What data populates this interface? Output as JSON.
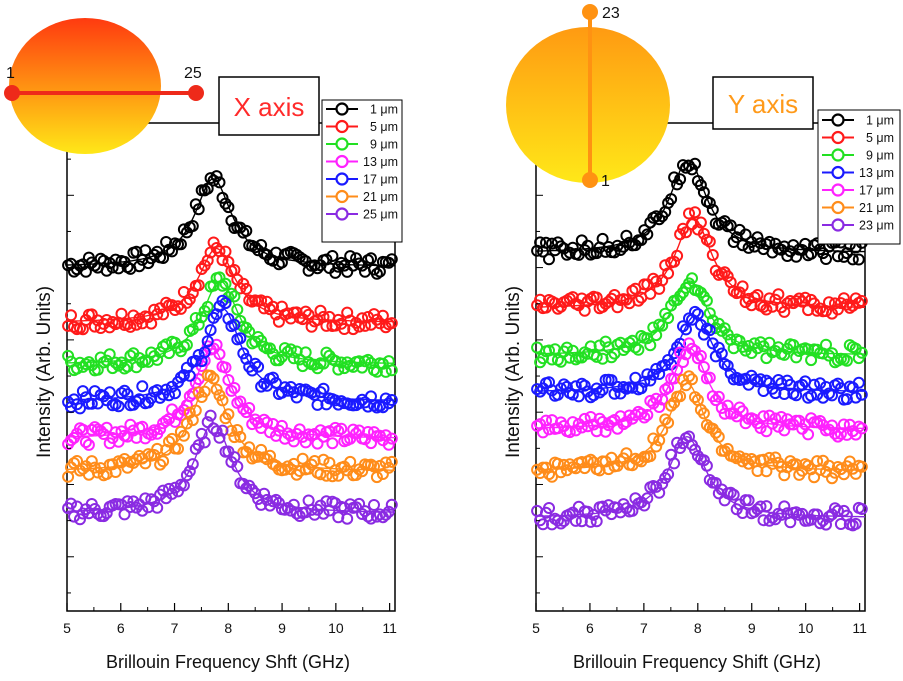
{
  "chart_data": [
    {
      "type": "scatter",
      "title": "X axis",
      "title_color": "#ff2a2a",
      "xlabel": "Brillouin Frequency Shft (GHz)",
      "ylabel": "Intensity (Arb. Units)",
      "xlim": [
        5,
        11.1
      ],
      "x_ticks": [
        "5",
        "6",
        "7",
        "8",
        "9",
        "10",
        "11"
      ],
      "y_ticks_shown": false,
      "legend_placement": "top-right",
      "inset": {
        "orientation": "horizontal",
        "start_label": "1",
        "end_label": "25"
      },
      "series": [
        {
          "name": "1 μm",
          "color": "#000000",
          "peak_x": 7.72,
          "baseline": 7.4,
          "amplitude": 1.9
        },
        {
          "name": "5 μm",
          "color": "#ff1a1a",
          "peak_x": 7.78,
          "baseline": 6.2,
          "amplitude": 1.6
        },
        {
          "name": "9 μm",
          "color": "#22e022",
          "peak_x": 7.85,
          "baseline": 5.3,
          "amplitude": 1.8
        },
        {
          "name": "13 μm",
          "color": "#ff22ff",
          "peak_x": 7.7,
          "baseline": 3.7,
          "amplitude": 1.95
        },
        {
          "name": "17 μm",
          "color": "#1a1aff",
          "peak_x": 7.9,
          "baseline": 4.5,
          "amplitude": 2.0
        },
        {
          "name": "21 μm",
          "color": "#ff8c1a",
          "peak_x": 7.65,
          "baseline": 3.0,
          "amplitude": 1.95
        },
        {
          "name": "25 μm",
          "color": "#8a2be2",
          "peak_x": 7.72,
          "baseline": 2.1,
          "amplitude": 1.95
        }
      ]
    },
    {
      "type": "scatter",
      "title": "Y axis",
      "title_color": "#ff9a1a",
      "xlabel": "Brillouin Frequency Shift (GHz)",
      "ylabel": "Intensity (Arb. Units)",
      "xlim": [
        5,
        11.1
      ],
      "x_ticks": [
        "5",
        "6",
        "7",
        "8",
        "9",
        "10",
        "11"
      ],
      "y_ticks_shown": false,
      "legend_placement": "top-right",
      "inset": {
        "orientation": "vertical",
        "start_label": "1",
        "end_label": "23"
      },
      "series": [
        {
          "name": "1 μm",
          "color": "#000000",
          "peak_x": 7.82,
          "baseline": 7.7,
          "amplitude": 2.0
        },
        {
          "name": "5 μm",
          "color": "#ff1a1a",
          "peak_x": 7.92,
          "baseline": 6.5,
          "amplitude": 1.95
        },
        {
          "name": "9 μm",
          "color": "#22e022",
          "peak_x": 7.85,
          "baseline": 5.5,
          "amplitude": 1.6
        },
        {
          "name": "13 μm",
          "color": "#1a1aff",
          "peak_x": 7.95,
          "baseline": 4.7,
          "amplitude": 1.65
        },
        {
          "name": "17 μm",
          "color": "#ff22ff",
          "peak_x": 7.85,
          "baseline": 3.9,
          "amplitude": 1.75
        },
        {
          "name": "21 μm",
          "color": "#ff8c1a",
          "peak_x": 7.8,
          "baseline": 3.0,
          "amplitude": 1.9
        },
        {
          "name": "23 μm",
          "color": "#8a2be2",
          "peak_x": 7.8,
          "baseline": 2.0,
          "amplitude": 1.75
        }
      ]
    }
  ]
}
